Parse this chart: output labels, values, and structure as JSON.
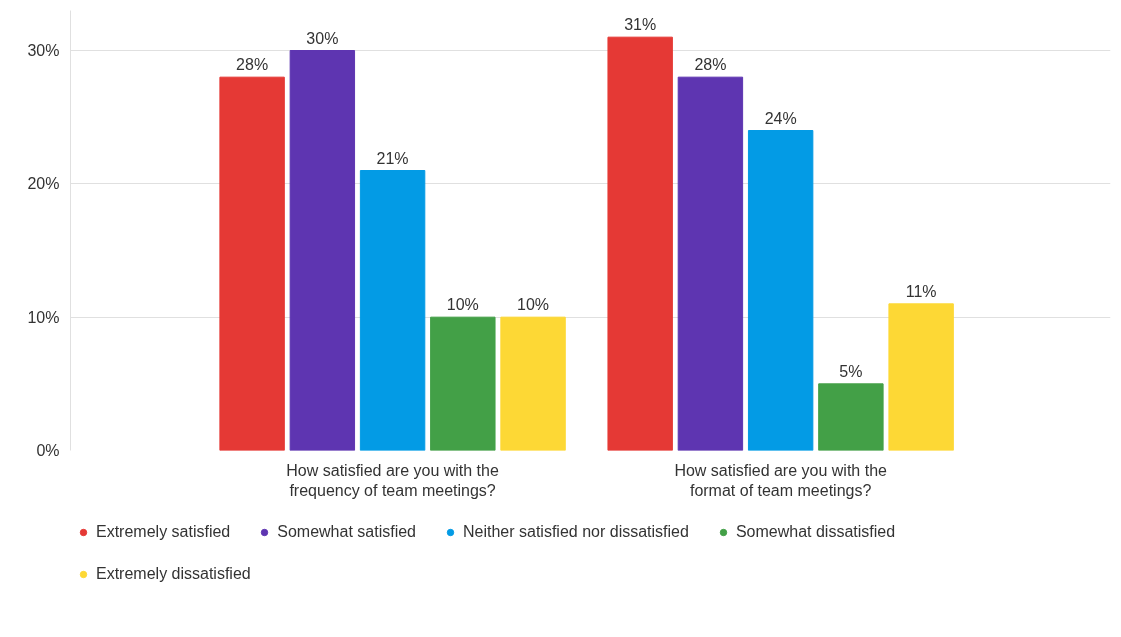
{
  "chart_data": {
    "type": "bar",
    "categories": [
      "How satisfied are you with the frequency of team meetings?",
      "How satisfied are you with the format of team meetings?"
    ],
    "series": [
      {
        "name": "Extremely satisfied",
        "color": "#e53935",
        "values": [
          28,
          31
        ],
        "value_labels": [
          "28%",
          "31%"
        ]
      },
      {
        "name": "Somewhat satisfied",
        "color": "#5e35b1",
        "values": [
          30,
          28
        ],
        "value_labels": [
          "30%",
          "28%"
        ]
      },
      {
        "name": "Neither satisfied nor dissatisfied",
        "color": "#039be5",
        "values": [
          21,
          24
        ],
        "value_labels": [
          "21%",
          "24%"
        ]
      },
      {
        "name": "Somewhat dissatisfied",
        "color": "#43a047",
        "values": [
          10,
          5
        ],
        "value_labels": [
          "10%",
          "5%"
        ]
      },
      {
        "name": "Extremely dissatisfied",
        "color": "#fdd835",
        "values": [
          10,
          11
        ],
        "value_labels": [
          "10%",
          "11%"
        ]
      }
    ],
    "ylim": [
      0,
      33
    ],
    "yticks": [
      {
        "value": 0,
        "label": "0%"
      },
      {
        "value": 10,
        "label": "10%"
      },
      {
        "value": 20,
        "label": "20%"
      },
      {
        "value": 30,
        "label": "30%"
      }
    ],
    "grid": "y",
    "legend": "bottom"
  }
}
